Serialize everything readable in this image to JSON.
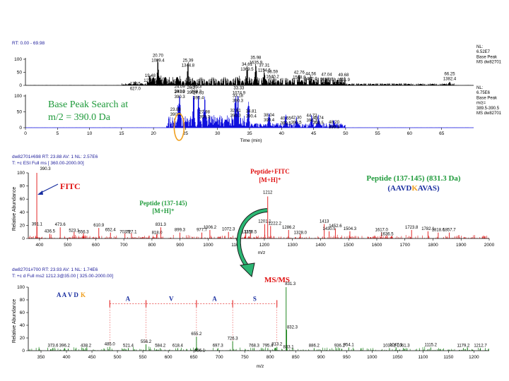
{
  "colors": {
    "ms": "#e01010",
    "tic": "#000000",
    "bps": "#1010dd",
    "msms": "#0a7a0a",
    "annot_green": "#1e9a3a",
    "annot_red": "#e01010",
    "annot_blue": "#1a2fa0",
    "fitc_red": "#e01010",
    "ellipse": "#f0a020",
    "header_blue": "#1a1a99",
    "arrow_green": "#2bb673"
  },
  "icons": {
    "curved_arrow": "curved-arrow-icon",
    "pointer_arrow": "pointer-arrow-icon"
  },
  "chart_data": [
    {
      "type": "line",
      "header": "RT: 0.00 - 69.98",
      "side_label": [
        "NL:",
        "6.52E7",
        "Base Peak",
        "MS dw82701"
      ],
      "ylim": [
        0,
        100
      ],
      "yticks": [
        "0",
        "50",
        "100"
      ],
      "peaks": [
        {
          "x": 17.15,
          "y": 12,
          "lines": [
            "17.15",
            "627.0"
          ]
        },
        {
          "x": 19.48,
          "y": 22,
          "lines": [
            "19.48",
            "1276.5"
          ]
        },
        {
          "x": 20.7,
          "y": 82,
          "lines": [
            "20.70",
            "1089.4"
          ]
        },
        {
          "x": 21.02,
          "y": 17,
          "lines": [
            "21.02",
            "832.7"
          ]
        },
        {
          "x": 24.09,
          "y": 12,
          "lines": [
            "24.09",
            "390.3"
          ]
        },
        {
          "x": 25.39,
          "y": 63,
          "lines": [
            "25.39",
            "1344.8"
          ]
        },
        {
          "x": 26.23,
          "y": 12,
          "lines": [
            "26.23",
            "390.3"
          ]
        },
        {
          "x": 33.33,
          "y": 12,
          "lines": [
            "33.33",
            "1074.9"
          ]
        },
        {
          "x": 34.61,
          "y": 48,
          "lines": [
            "34.61",
            "1369.5"
          ]
        },
        {
          "x": 35.98,
          "y": 75,
          "lines": [
            "35.98",
            "1635.9"
          ]
        },
        {
          "x": 37.31,
          "y": 45,
          "lines": [
            "37.31",
            "1154.5"
          ]
        },
        {
          "x": 38.59,
          "y": 20,
          "lines": [
            "38.59",
            "1640.2"
          ]
        },
        {
          "x": 42.76,
          "y": 18,
          "lines": [
            "42.76",
            "1568.8"
          ]
        },
        {
          "x": 44.56,
          "y": 12,
          "lines": [
            "44.56",
            "1462.0"
          ]
        },
        {
          "x": 47.04,
          "y": 10,
          "lines": [
            "47.04",
            "1057.0"
          ]
        },
        {
          "x": 49.68,
          "y": 8,
          "lines": [
            "49.68",
            "1211.9"
          ]
        },
        {
          "x": 66.25,
          "y": 12,
          "lines": [
            "66.25",
            "1382.4"
          ]
        }
      ]
    },
    {
      "type": "line",
      "side_label": [
        "NL:",
        "6.75E6",
        "Base Peak",
        "m/z=",
        "389.5-390.5",
        "MS dw82701"
      ],
      "ylim": [
        0,
        100
      ],
      "yticks": [
        "0",
        "50",
        "100"
      ],
      "xlim": [
        0,
        70
      ],
      "xticks": [
        0,
        5,
        10,
        15,
        20,
        25,
        30,
        35,
        40,
        45,
        50,
        55,
        60,
        65
      ],
      "xlabel": "Time (min)",
      "peaks": [
        {
          "x": 23.88,
          "y": 62,
          "lines": [
            "23.88",
            "390.3"
          ]
        },
        {
          "x": 24.09,
          "y": 96,
          "lines": [
            "24.09",
            "390.3"
          ]
        },
        {
          "x": 26.27,
          "y": 100,
          "lines": [
            "26.27",
            "390.4"
          ]
        },
        {
          "x": 27.03,
          "y": 88,
          "lines": [
            "27.03",
            "390.4"
          ]
        },
        {
          "x": 27.98,
          "y": 68,
          "lines": [
            "27.98",
            "390.3"
          ]
        },
        {
          "x": 32.81,
          "y": 72,
          "lines": [
            "32.81",
            "390.3"
          ]
        },
        {
          "x": 33.18,
          "y": 88,
          "lines": [
            "33.18",
            "390.3"
          ]
        },
        {
          "x": 34.81,
          "y": 70,
          "lines": [
            "34.81",
            "390.4"
          ]
        },
        {
          "x": 38.04,
          "y": 45,
          "lines": [
            "38.04",
            "390.4"
          ]
        },
        {
          "x": 40.65,
          "y": 30,
          "lines": [
            "40.65",
            "390.5"
          ]
        },
        {
          "x": 42.3,
          "y": 28,
          "lines": [
            "42.30",
            "390.5"
          ]
        },
        {
          "x": 44.72,
          "y": 30,
          "lines": [
            "44.72",
            "390.3"
          ]
        },
        {
          "x": 45.74,
          "y": 27,
          "lines": [
            "45.74",
            "390.5"
          ]
        },
        {
          "x": 48.2,
          "y": 22,
          "lines": [
            "48.20",
            "390.3"
          ]
        }
      ]
    },
    {
      "type": "bar",
      "header": [
        "dw82701#698   RT: 23.88   AV: 1   NL: 2.57E6",
        "T: +c ESI Full ms [ 360.00-2000.00]"
      ],
      "ylabel": "Relative Abundance",
      "ylim": [
        0,
        100
      ],
      "yticks": [
        "0",
        "20",
        "40",
        "60",
        "80",
        "100"
      ],
      "xlim": [
        360,
        2000
      ],
      "xticks": [
        "400",
        "500",
        "600",
        "700",
        "800",
        "900",
        "1000",
        "1100",
        "1200",
        "1300",
        "1400",
        "1500",
        "1600",
        "1700",
        "1800",
        "1900",
        "2000"
      ],
      "xlabel": "m/z",
      "peaks": [
        {
          "x": 390.3,
          "y": 100,
          "label": "390.3"
        },
        {
          "x": 391.1,
          "y": 18,
          "label": "391.1"
        },
        {
          "x": 436.5,
          "y": 7,
          "label": "436.5"
        },
        {
          "x": 473.6,
          "y": 17,
          "label": "473.6"
        },
        {
          "x": 523.1,
          "y": 10,
          "label": "523.1"
        },
        {
          "x": 556.3,
          "y": 8,
          "label": "556.3"
        },
        {
          "x": 610.9,
          "y": 16,
          "label": "610.9"
        },
        {
          "x": 652.4,
          "y": 9,
          "label": "652.4"
        },
        {
          "x": 703.9,
          "y": 8,
          "label": "703.9"
        },
        {
          "x": 727.1,
          "y": 8,
          "label": "727.1"
        },
        {
          "x": 818.0,
          "y": 7,
          "label": "818.0"
        },
        {
          "x": 831.3,
          "y": 17,
          "label": "831.3"
        },
        {
          "x": 899.3,
          "y": 9,
          "label": "899.3"
        },
        {
          "x": 977.7,
          "y": 9,
          "label": "977.7"
        },
        {
          "x": 1006.2,
          "y": 13,
          "label": "1006.2"
        },
        {
          "x": 1072.3,
          "y": 10,
          "label": "1072.3"
        },
        {
          "x": 1133.9,
          "y": 8,
          "label": "1133.9"
        },
        {
          "x": 1150.5,
          "y": 8,
          "label": "1150.5"
        },
        {
          "x": 1201.1,
          "y": 22,
          "label": "1201.1"
        },
        {
          "x": 1212,
          "y": 64,
          "label": "1212"
        },
        {
          "x": 1222.2,
          "y": 19,
          "label": "1222.2"
        },
        {
          "x": 1286.2,
          "y": 13,
          "label": "1286.2"
        },
        {
          "x": 1328.0,
          "y": 7,
          "label": "1328.0"
        },
        {
          "x": 1413,
          "y": 22,
          "label": "1413"
        },
        {
          "x": 1430.5,
          "y": 11,
          "label": "1430.5"
        },
        {
          "x": 1452.6,
          "y": 15,
          "label": "1452.6"
        },
        {
          "x": 1504.3,
          "y": 11,
          "label": "1504.3"
        },
        {
          "x": 1617.0,
          "y": 9,
          "label": "1617.0"
        },
        {
          "x": 1636.5,
          "y": 5,
          "label": "1636.5"
        },
        {
          "x": 1723.8,
          "y": 13,
          "label": "1723.8"
        },
        {
          "x": 1782.1,
          "y": 11,
          "label": "1782.1"
        },
        {
          "x": 1818.6,
          "y": 9,
          "label": "1818.6"
        },
        {
          "x": 1857.7,
          "y": 9,
          "label": "1857.7"
        }
      ]
    },
    {
      "type": "bar",
      "header": [
        "dw82701#700   RT: 23.93   AV: 1   NL: 1.74E6",
        "T: +c d Full ms2 1212.3@35.00 [ 325.00-2000.00]"
      ],
      "ylabel": "Relative Abundance",
      "ylim": [
        0,
        100
      ],
      "yticks": [
        "0",
        "20",
        "40",
        "60",
        "80",
        "100"
      ],
      "xlim": [
        325,
        1230
      ],
      "xticks": [
        "350",
        "400",
        "450",
        "500",
        "550",
        "600",
        "650",
        "700",
        "750",
        "800",
        "850",
        "900",
        "950",
        "1000",
        "1050",
        "1100",
        "1150",
        "1200"
      ],
      "xlabel": "m/z",
      "peaks": [
        {
          "x": 373.6,
          "y": 4,
          "label": "373.6"
        },
        {
          "x": 396.2,
          "y": 4,
          "label": "396.2"
        },
        {
          "x": 438.2,
          "y": 4,
          "label": "438.2"
        },
        {
          "x": 485.0,
          "y": 6,
          "label": "485.0"
        },
        {
          "x": 521.4,
          "y": 4,
          "label": "521.4"
        },
        {
          "x": 556.2,
          "y": 10,
          "label": "556.2"
        },
        {
          "x": 584.2,
          "y": 4,
          "label": "584.2"
        },
        {
          "x": 618.4,
          "y": 4,
          "label": "618.4"
        },
        {
          "x": 655.2,
          "y": 22,
          "label": "655.2"
        },
        {
          "x": 656.1,
          "y": 5,
          "label": "656.1"
        },
        {
          "x": 697.3,
          "y": 4,
          "label": "697.3"
        },
        {
          "x": 726.3,
          "y": 15,
          "label": "726.3"
        },
        {
          "x": 768.3,
          "y": 4,
          "label": "768.3"
        },
        {
          "x": 795.4,
          "y": 4,
          "label": "795.4"
        },
        {
          "x": 813.2,
          "y": 6,
          "label": "813.2"
        },
        {
          "x": 831.3,
          "y": 100,
          "label": "831.3"
        },
        {
          "x": 832.3,
          "y": 33,
          "label": "832.3"
        },
        {
          "x": 833.1,
          "y": 4,
          "label": "833.1"
        },
        {
          "x": 886.2,
          "y": 4,
          "label": "886.2"
        },
        {
          "x": 936.2,
          "y": 4,
          "label": "936.2"
        },
        {
          "x": 954.1,
          "y": 5,
          "label": "954.1"
        },
        {
          "x": 1034.2,
          "y": 4,
          "label": "1034.2"
        },
        {
          "x": 1047.1,
          "y": 5,
          "label": "1047.1"
        },
        {
          "x": 1061.3,
          "y": 4,
          "label": "1061.3"
        },
        {
          "x": 1115.2,
          "y": 5,
          "label": "1115.2"
        },
        {
          "x": 1179.2,
          "y": 4,
          "label": "1179.2"
        },
        {
          "x": 1212.7,
          "y": 4,
          "label": "1212.7"
        }
      ],
      "ion_markers": [
        {
          "x": 485.0,
          "letter": "K"
        },
        {
          "x": 556.2,
          "letter": "A"
        },
        {
          "x": 655.2,
          "letter": "V"
        },
        {
          "x": 726.3,
          "letter": "A"
        },
        {
          "x": 813.2,
          "letter": "S"
        }
      ]
    }
  ],
  "annotations": {
    "bps_title": [
      "Base Peak Search at",
      "m/2 = 390.0 Da"
    ],
    "peptide_fitc": [
      "Peptide+FITC",
      "[M+H]⁺"
    ],
    "peptide_mh": [
      "Peptide (137-145)",
      "[M+H]⁺"
    ],
    "peptide_title": "Peptide (137-145) (831.3 Da)",
    "sequence": [
      "(AAVD",
      "K",
      "AVAS)"
    ],
    "fitc": "FITC",
    "msms": "MS/MS",
    "msms_seq": [
      {
        "text": "A A V D",
        "color": "#1a2fa0"
      },
      {
        "text": "K",
        "color": "#f0a020"
      }
    ],
    "msms_letters": [
      "A",
      "V",
      "A",
      "S"
    ]
  }
}
